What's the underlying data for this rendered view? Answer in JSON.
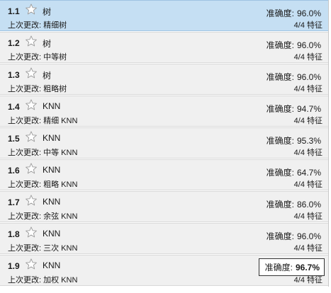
{
  "colors": {
    "row_background": "#f0f0f0",
    "selected_background": "#c5dff3",
    "best_border": "#333333"
  },
  "rows": [
    {
      "id": "1.1",
      "name": "树",
      "last_change_label": "上次更改:",
      "last_change": "精细树",
      "metric_label": "准确度:",
      "metric_value": "96.0%",
      "features": "4/4 特征",
      "selected": true,
      "best": false
    },
    {
      "id": "1.2",
      "name": "树",
      "last_change_label": "上次更改:",
      "last_change": "中等树",
      "metric_label": "准确度:",
      "metric_value": "96.0%",
      "features": "4/4 特征",
      "selected": false,
      "best": false
    },
    {
      "id": "1.3",
      "name": "树",
      "last_change_label": "上次更改:",
      "last_change": "粗略树",
      "metric_label": "准确度:",
      "metric_value": "96.0%",
      "features": "4/4 特征",
      "selected": false,
      "best": false
    },
    {
      "id": "1.4",
      "name": "KNN",
      "last_change_label": "上次更改:",
      "last_change": "精细 KNN",
      "metric_label": "准确度:",
      "metric_value": "94.7%",
      "features": "4/4 特征",
      "selected": false,
      "best": false
    },
    {
      "id": "1.5",
      "name": "KNN",
      "last_change_label": "上次更改:",
      "last_change": "中等 KNN",
      "metric_label": "准确度:",
      "metric_value": "95.3%",
      "features": "4/4 特征",
      "selected": false,
      "best": false
    },
    {
      "id": "1.6",
      "name": "KNN",
      "last_change_label": "上次更改:",
      "last_change": "粗略 KNN",
      "metric_label": "准确度:",
      "metric_value": "64.7%",
      "features": "4/4 特征",
      "selected": false,
      "best": false
    },
    {
      "id": "1.7",
      "name": "KNN",
      "last_change_label": "上次更改:",
      "last_change": "余弦 KNN",
      "metric_label": "准确度:",
      "metric_value": "86.0%",
      "features": "4/4 特征",
      "selected": false,
      "best": false
    },
    {
      "id": "1.8",
      "name": "KNN",
      "last_change_label": "上次更改:",
      "last_change": "三次 KNN",
      "metric_label": "准确度:",
      "metric_value": "96.0%",
      "features": "4/4 特征",
      "selected": false,
      "best": false
    },
    {
      "id": "1.9",
      "name": "KNN",
      "last_change_label": "上次更改:",
      "last_change": "加权 KNN",
      "metric_label": "准确度:",
      "metric_value": "96.7%",
      "features": "4/4 特征",
      "selected": false,
      "best": true
    }
  ],
  "icons": {
    "favorite": "star-outline-icon"
  }
}
